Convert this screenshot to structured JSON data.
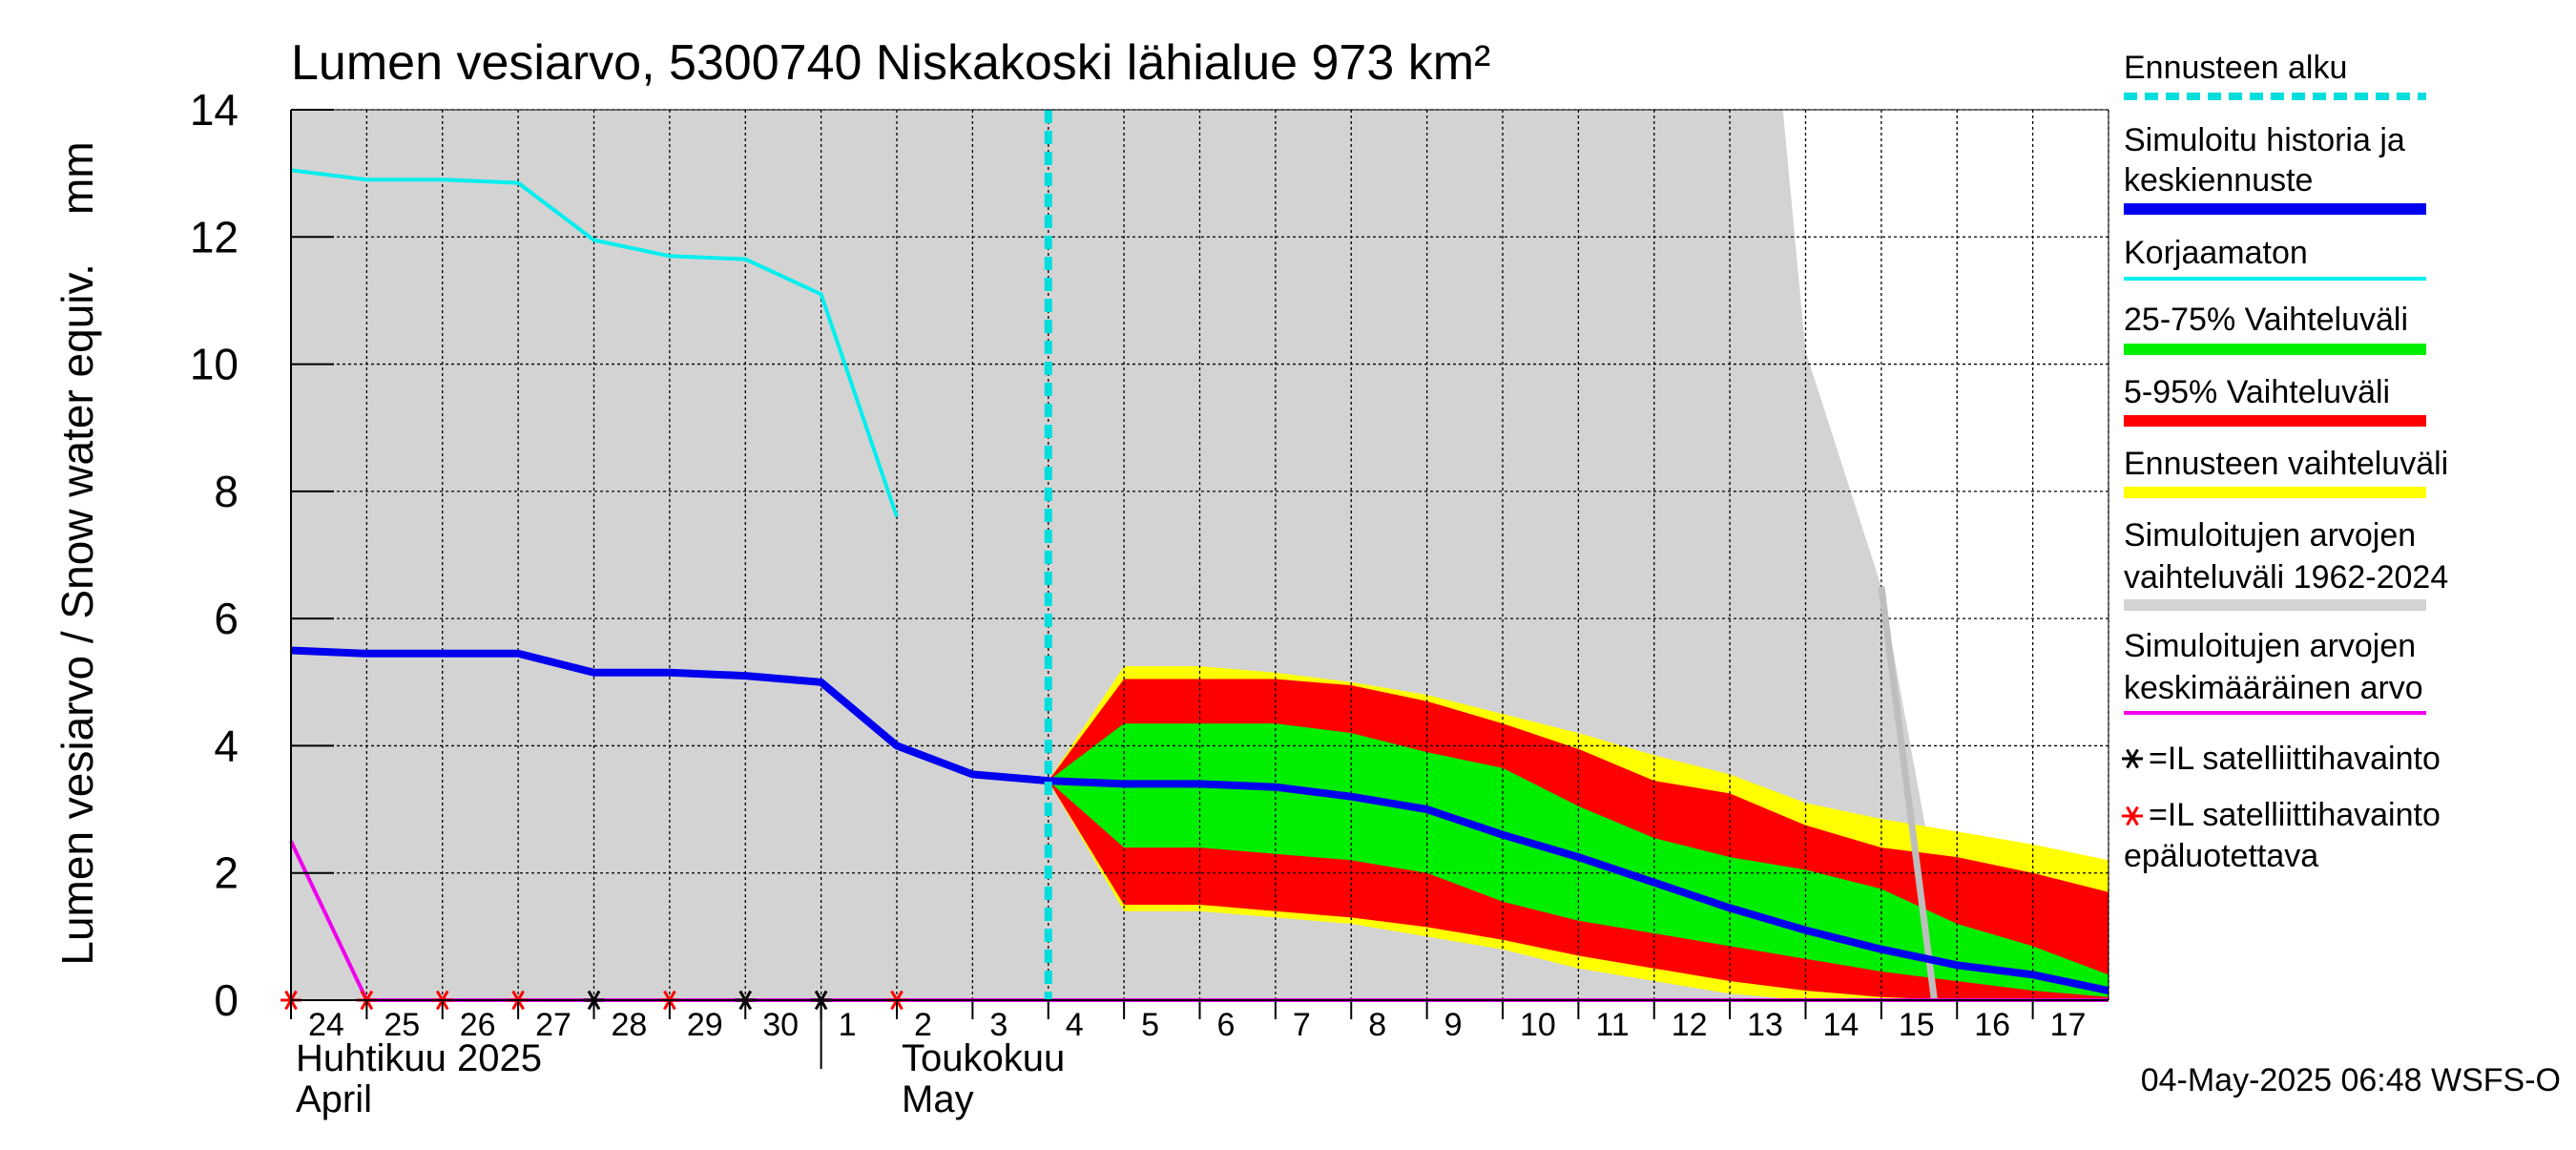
{
  "chart_data": {
    "type": "area",
    "title": "Lumen vesiarvo, 5300740 Niskakoski lähialue 973 km²",
    "ylabel": "Lumen vesiarvo / Snow water equiv.    mm",
    "ylim": [
      0,
      14
    ],
    "yticks": [
      0,
      2,
      4,
      6,
      8,
      10,
      12,
      14
    ],
    "xlim": [
      "2025-04-24",
      "2025-05-18"
    ],
    "x_ticks": [
      {
        "date": "2025-04-24",
        "label": "24"
      },
      {
        "date": "2025-04-25",
        "label": "25"
      },
      {
        "date": "2025-04-26",
        "label": "26"
      },
      {
        "date": "2025-04-27",
        "label": "27"
      },
      {
        "date": "2025-04-28",
        "label": "28"
      },
      {
        "date": "2025-04-29",
        "label": "29"
      },
      {
        "date": "2025-04-30",
        "label": "30"
      },
      {
        "date": "2025-05-01",
        "label": "1"
      },
      {
        "date": "2025-05-02",
        "label": "2"
      },
      {
        "date": "2025-05-03",
        "label": "3"
      },
      {
        "date": "2025-05-04",
        "label": "4"
      },
      {
        "date": "2025-05-05",
        "label": "5"
      },
      {
        "date": "2025-05-06",
        "label": "6"
      },
      {
        "date": "2025-05-07",
        "label": "7"
      },
      {
        "date": "2025-05-08",
        "label": "8"
      },
      {
        "date": "2025-05-09",
        "label": "9"
      },
      {
        "date": "2025-05-10",
        "label": "10"
      },
      {
        "date": "2025-05-11",
        "label": "11"
      },
      {
        "date": "2025-05-12",
        "label": "12"
      },
      {
        "date": "2025-05-13",
        "label": "13"
      },
      {
        "date": "2025-05-14",
        "label": "14"
      },
      {
        "date": "2025-05-15",
        "label": "15"
      },
      {
        "date": "2025-05-16",
        "label": "16"
      },
      {
        "date": "2025-05-17",
        "label": "17"
      }
    ],
    "month_labels": [
      {
        "date": "2025-04-24",
        "line1": "Huhtikuu  2025",
        "line2": "April"
      },
      {
        "date": "2025-05-02",
        "line1": "Toukokuu",
        "line2": "May"
      }
    ],
    "month_separator_date": "2025-05-01",
    "forecast_start_date": "2025-05-04",
    "grid": true,
    "legend_position": "right",
    "timestamp": "04-May-2025 06:48 WSFS-O",
    "colors": {
      "historical_range": "#d3d3d3",
      "forecast_range": "#ffff00",
      "band_5_95": "#ff0000",
      "band_25_75": "#00ee00",
      "mean_forecast": "#0000ee",
      "uncorrected": "#00eeee",
      "hist_average": "#ee00ee",
      "forecast_start": "#00dddd",
      "sat_obs": "#000000",
      "sat_obs_unreliable": "#ff0000",
      "grid": "#000000"
    },
    "series": [
      {
        "id": "hist_range",
        "kind": "band",
        "x": [
          "2025-04-24",
          "2025-05-13",
          "2025-05-13.7",
          "2025-05-14",
          "2025-05-15",
          "2025-05-16",
          "2025-05-18"
        ],
        "upper": [
          14,
          14,
          14,
          10.2,
          6.5,
          0,
          0
        ],
        "lower": [
          0,
          0,
          0,
          0,
          0,
          0,
          0
        ]
      },
      {
        "id": "hist_max_line",
        "kind": "line",
        "x": [
          "2025-05-15",
          "2025-05-15.7"
        ],
        "y": [
          6.5,
          0
        ]
      },
      {
        "id": "forecast_range",
        "kind": "band",
        "x": [
          "2025-05-04",
          "2025-05-05",
          "2025-05-06",
          "2025-05-07",
          "2025-05-08",
          "2025-05-09",
          "2025-05-10",
          "2025-05-11",
          "2025-05-12",
          "2025-05-13",
          "2025-05-14",
          "2025-05-15",
          "2025-05-16",
          "2025-05-17",
          "2025-05-18"
        ],
        "upper": [
          3.45,
          5.25,
          5.25,
          5.15,
          5.0,
          4.8,
          4.5,
          4.2,
          3.85,
          3.55,
          3.1,
          2.85,
          2.65,
          2.45,
          2.2
        ],
        "lower": [
          3.45,
          1.4,
          1.4,
          1.3,
          1.2,
          1.0,
          0.8,
          0.5,
          0.3,
          0.1,
          0.0,
          0.0,
          0.0,
          0.0,
          0.0
        ]
      },
      {
        "id": "band_5_95",
        "kind": "band",
        "x": [
          "2025-05-04",
          "2025-05-05",
          "2025-05-06",
          "2025-05-07",
          "2025-05-08",
          "2025-05-09",
          "2025-05-10",
          "2025-05-11",
          "2025-05-12",
          "2025-05-13",
          "2025-05-14",
          "2025-05-15",
          "2025-05-16",
          "2025-05-17",
          "2025-05-18"
        ],
        "upper": [
          3.45,
          5.05,
          5.05,
          5.05,
          4.95,
          4.7,
          4.35,
          3.95,
          3.45,
          3.25,
          2.75,
          2.4,
          2.25,
          2.0,
          1.7
        ],
        "lower": [
          3.45,
          1.5,
          1.5,
          1.4,
          1.3,
          1.15,
          0.95,
          0.7,
          0.5,
          0.3,
          0.15,
          0.05,
          0.0,
          0.0,
          0.0
        ]
      },
      {
        "id": "band_25_75",
        "kind": "band",
        "x": [
          "2025-05-04",
          "2025-05-05",
          "2025-05-06",
          "2025-05-07",
          "2025-05-08",
          "2025-05-09",
          "2025-05-10",
          "2025-05-11",
          "2025-05-12",
          "2025-05-13",
          "2025-05-14",
          "2025-05-15",
          "2025-05-16",
          "2025-05-17",
          "2025-05-18"
        ],
        "upper": [
          3.45,
          4.35,
          4.35,
          4.35,
          4.2,
          3.9,
          3.65,
          3.05,
          2.55,
          2.25,
          2.05,
          1.75,
          1.2,
          0.85,
          0.4
        ],
        "lower": [
          3.45,
          2.4,
          2.4,
          2.3,
          2.2,
          2.0,
          1.55,
          1.25,
          1.05,
          0.85,
          0.65,
          0.45,
          0.3,
          0.15,
          0.05
        ]
      },
      {
        "id": "mean_forecast",
        "kind": "line",
        "x": [
          "2025-04-24",
          "2025-04-25",
          "2025-04-26",
          "2025-04-27",
          "2025-04-28",
          "2025-04-29",
          "2025-04-30",
          "2025-05-01",
          "2025-05-02",
          "2025-05-03",
          "2025-05-04",
          "2025-05-05",
          "2025-05-06",
          "2025-05-07",
          "2025-05-08",
          "2025-05-09",
          "2025-05-10",
          "2025-05-11",
          "2025-05-12",
          "2025-05-13",
          "2025-05-14",
          "2025-05-15",
          "2025-05-16",
          "2025-05-17",
          "2025-05-18"
        ],
        "y": [
          5.5,
          5.45,
          5.45,
          5.45,
          5.15,
          5.15,
          5.1,
          5.0,
          4.0,
          3.55,
          3.45,
          3.4,
          3.4,
          3.35,
          3.2,
          3.0,
          2.6,
          2.25,
          1.85,
          1.45,
          1.1,
          0.8,
          0.55,
          0.4,
          0.15
        ]
      },
      {
        "id": "uncorrected",
        "kind": "line",
        "x": [
          "2025-04-24",
          "2025-04-25",
          "2025-04-26",
          "2025-04-27",
          "2025-04-28",
          "2025-04-29",
          "2025-04-30",
          "2025-05-01",
          "2025-05-02"
        ],
        "y": [
          13.05,
          12.9,
          12.9,
          12.85,
          11.95,
          11.7,
          11.65,
          11.1,
          7.6
        ]
      },
      {
        "id": "hist_average",
        "kind": "line",
        "x": [
          "2025-04-24",
          "2025-04-25",
          "2025-05-18"
        ],
        "y": [
          2.5,
          0,
          0
        ]
      }
    ],
    "sat_obs": {
      "reliable": [
        "2025-04-28",
        "2025-04-30",
        "2025-05-01"
      ],
      "unreliable": [
        "2025-04-24",
        "2025-04-25",
        "2025-04-26",
        "2025-04-27",
        "2025-04-29",
        "2025-05-02"
      ],
      "value": 0
    },
    "legend": [
      {
        "label": "Ennusteen alku",
        "style": "dash",
        "color": "#00dddd"
      },
      {
        "label": "Simuloitu historia ja|keskiennuste",
        "style": "thick",
        "color": "#0000ee"
      },
      {
        "label": "Korjaamaton",
        "style": "thin",
        "color": "#00eeee"
      },
      {
        "label": "25-75% Vaihteluväli",
        "style": "thick",
        "color": "#00ee00"
      },
      {
        "label": "5-95% Vaihteluväli",
        "style": "thick",
        "color": "#ff0000"
      },
      {
        "label": "Ennusteen vaihteluväli",
        "style": "thick",
        "color": "#ffff00"
      },
      {
        "label": "Simuloitujen arvojen|vaihteluväli 1962-2024",
        "style": "thick",
        "color": "#d3d3d3"
      },
      {
        "label": "Simuloitujen arvojen|keskimääräinen arvo",
        "style": "thin",
        "color": "#ee00ee"
      },
      {
        "label": "=IL satelliittihavainto",
        "style": "marker",
        "color": "#000000"
      },
      {
        "label": "=IL satelliittihavainto|epäluotettava",
        "style": "marker",
        "color": "#ff0000"
      }
    ]
  }
}
